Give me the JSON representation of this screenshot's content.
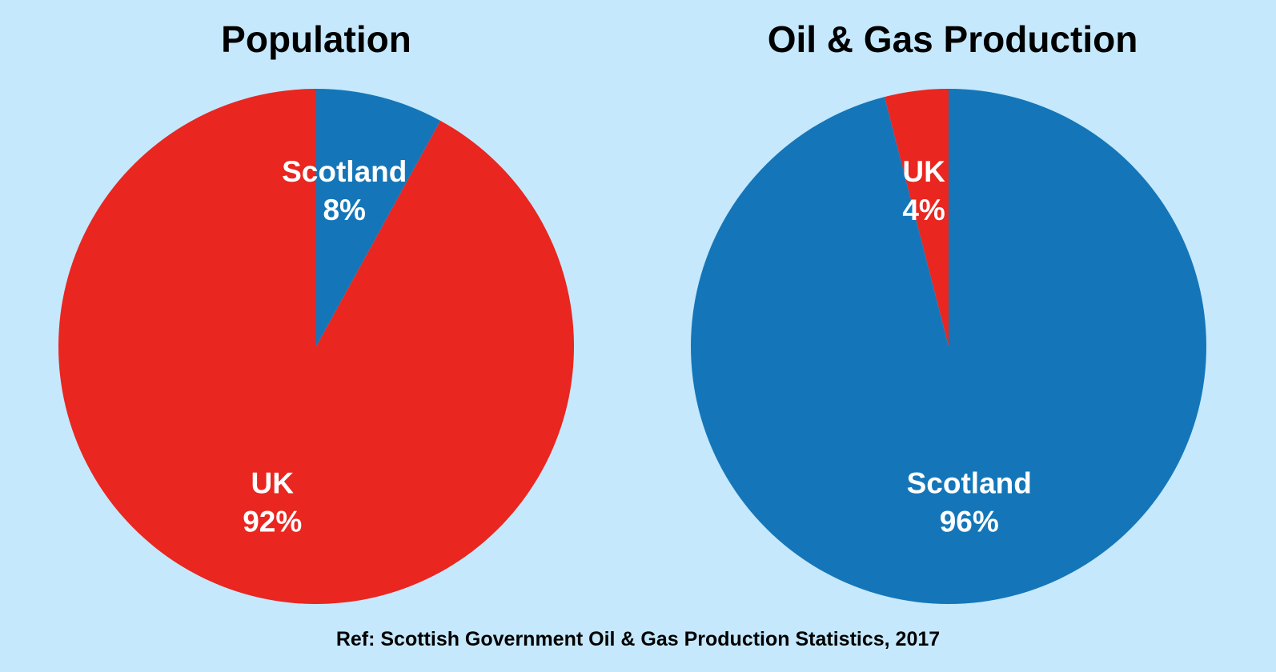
{
  "colors": {
    "background": "#c5e8fd",
    "scotland": "#1476b8",
    "uk": "#e92620",
    "label_text": "#ffffff",
    "title_text": "#000000"
  },
  "chart_data": [
    {
      "type": "pie",
      "title": "Population",
      "slices": [
        {
          "label": "Scotland",
          "value_label": "8%",
          "value": 8,
          "color": "#1476b8"
        },
        {
          "label": "UK",
          "value_label": "92%",
          "value": 92,
          "color": "#e92620"
        }
      ]
    },
    {
      "type": "pie",
      "title": "Oil & Gas Production",
      "slices": [
        {
          "label": "Scotland",
          "value_label": "96%",
          "value": 96,
          "color": "#1476b8"
        },
        {
          "label": "UK",
          "value_label": "4%",
          "value": 4,
          "color": "#e92620"
        }
      ]
    }
  ],
  "footnote": "Ref: Scottish Government Oil & Gas Production Statistics, 2017"
}
